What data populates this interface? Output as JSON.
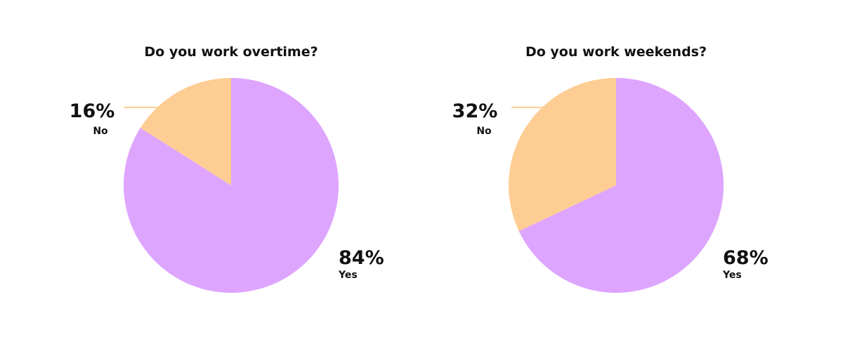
{
  "chart_data": [
    {
      "type": "pie",
      "title": "Do you work overtime?",
      "slices": [
        {
          "label": "Yes",
          "value": 84,
          "value_label": "84%",
          "color": "#dea5ff"
        },
        {
          "label": "No",
          "value": 16,
          "value_label": "16%",
          "color": "#fecd93"
        }
      ]
    },
    {
      "type": "pie",
      "title": "Do you work weekends?",
      "slices": [
        {
          "label": "Yes",
          "value": 68,
          "value_label": "68%",
          "color": "#dea5ff"
        },
        {
          "label": "No",
          "value": 32,
          "value_label": "32%",
          "color": "#fecd93"
        }
      ]
    }
  ],
  "colors": {
    "yes": "#dea5ff",
    "no": "#fecd93",
    "leader": "#fecd93",
    "text": "#111111"
  }
}
